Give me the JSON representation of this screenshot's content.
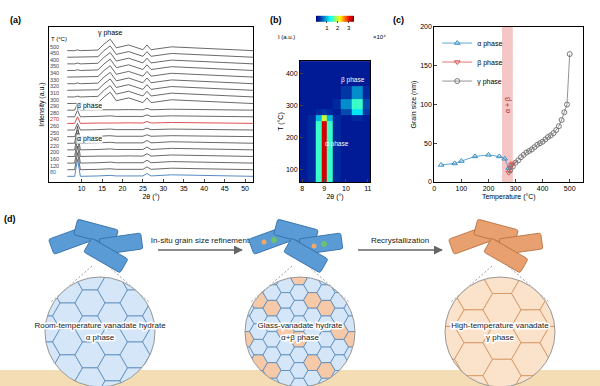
{
  "chart_data": [
    {
      "panel_label": "(a)",
      "type": "line",
      "x": [
        6.5,
        8.3,
        9,
        9.7,
        14,
        15.5,
        17,
        18.5,
        21.5,
        25,
        26,
        27,
        32,
        52
      ],
      "series": [
        {
          "name": "80",
          "color": "#2a6db5",
          "values": [
            0,
            0,
            0.9,
            0,
            0.02,
            0.03,
            0.05,
            0.02,
            0.03,
            0.02,
            0.15,
            0.02,
            0.08,
            0
          ]
        },
        {
          "name": "120",
          "color": "#444444",
          "values": [
            0.35,
            0.35,
            1.25,
            0.35,
            0.37,
            0.38,
            0.4,
            0.37,
            0.38,
            0.37,
            0.5,
            0.37,
            0.43,
            0.35
          ]
        },
        {
          "name": "160",
          "color": "#444444",
          "values": [
            0.7,
            0.7,
            1.6,
            0.7,
            0.72,
            0.73,
            0.75,
            0.72,
            0.73,
            0.72,
            0.85,
            0.72,
            0.78,
            0.7
          ]
        },
        {
          "name": "200",
          "color": "#444444",
          "values": [
            1.05,
            1.05,
            1.95,
            1.05,
            1.07,
            1.08,
            1.1,
            1.07,
            1.08,
            1.07,
            1.2,
            1.07,
            1.13,
            1.05
          ]
        },
        {
          "name": "220",
          "color": "#444444",
          "values": [
            1.4,
            1.4,
            2.3,
            1.4,
            1.42,
            1.43,
            1.45,
            1.42,
            1.43,
            1.42,
            1.55,
            1.42,
            1.48,
            1.4
          ]
        },
        {
          "name": "240",
          "color": "#444444",
          "values": [
            1.75,
            1.75,
            2.65,
            1.75,
            1.77,
            1.78,
            1.8,
            1.77,
            1.78,
            1.77,
            1.9,
            1.77,
            1.83,
            1.75
          ]
        },
        {
          "name": "250",
          "color": "#444444",
          "values": [
            2.1,
            2.1,
            2.45,
            2.1,
            2.12,
            2.13,
            2.15,
            2.12,
            2.13,
            2.12,
            2.2,
            2.12,
            2.15,
            2.1
          ]
        },
        {
          "name": "260",
          "color": "#444444",
          "values": [
            2.45,
            2.45,
            2.8,
            2.45,
            2.47,
            2.48,
            2.5,
            2.47,
            2.48,
            2.47,
            2.55,
            2.47,
            2.5,
            2.45
          ]
        },
        {
          "name": "270",
          "color": "#d62728",
          "values": [
            2.8,
            2.8,
            3.15,
            2.8,
            2.82,
            2.83,
            2.85,
            2.82,
            2.83,
            2.82,
            2.9,
            2.82,
            2.85,
            2.8
          ]
        },
        {
          "name": "280",
          "color": "#444444",
          "values": [
            3.15,
            3.15,
            3.5,
            3.15,
            3.17,
            3.18,
            3.2,
            3.17,
            3.18,
            3.17,
            3.25,
            3.17,
            3.2,
            3.15
          ]
        },
        {
          "name": "290",
          "color": "#444444",
          "values": [
            3.5,
            3.5,
            3.85,
            3.5,
            3.52,
            3.53,
            3.55,
            3.52,
            3.53,
            3.52,
            3.6,
            3.52,
            3.55,
            3.5
          ]
        },
        {
          "name": "300",
          "color": "#444444",
          "values": [
            3.85,
            3.85,
            3.89,
            3.85,
            3.88,
            4.2,
            4.45,
            4,
            4.15,
            3.9,
            4.15,
            3.9,
            4.05,
            3.85
          ]
        },
        {
          "name": "310",
          "color": "#444444",
          "values": [
            4.2,
            4.2,
            4.24,
            4.2,
            4.23,
            4.55,
            4.8,
            4.35,
            4.5,
            4.25,
            4.5,
            4.25,
            4.4,
            4.2
          ]
        },
        {
          "name": "320",
          "color": "#444444",
          "values": [
            4.55,
            4.55,
            4.59,
            4.55,
            4.58,
            4.9,
            5.15,
            4.7,
            4.85,
            4.6,
            4.85,
            4.6,
            4.75,
            4.55
          ]
        },
        {
          "name": "330",
          "color": "#444444",
          "values": [
            4.9,
            4.9,
            4.94,
            4.9,
            4.93,
            5.25,
            5.5,
            5.05,
            5.2,
            4.95,
            5.2,
            4.95,
            5.1,
            4.9
          ]
        },
        {
          "name": "340",
          "color": "#444444",
          "values": [
            5.25,
            5.25,
            5.29,
            5.25,
            5.28,
            5.6,
            5.85,
            5.4,
            5.55,
            5.3,
            5.55,
            5.3,
            5.45,
            5.25
          ]
        },
        {
          "name": "350",
          "color": "#444444",
          "values": [
            5.6,
            5.6,
            5.64,
            5.6,
            5.63,
            5.95,
            6.2,
            5.75,
            5.9,
            5.65,
            5.9,
            5.65,
            5.8,
            5.6
          ]
        },
        {
          "name": "400",
          "color": "#444444",
          "values": [
            5.95,
            5.95,
            5.99,
            5.95,
            5.98,
            6.3,
            6.55,
            6.1,
            6.25,
            6,
            6.25,
            6,
            6.15,
            5.95
          ]
        },
        {
          "name": "450",
          "color": "#444444",
          "values": [
            6.3,
            6.3,
            6.34,
            6.3,
            6.33,
            6.65,
            6.9,
            6.45,
            6.6,
            6.35,
            6.6,
            6.35,
            6.5,
            6.3
          ]
        },
        {
          "name": "500",
          "color": "#444444",
          "values": [
            6.65,
            6.65,
            6.69,
            6.65,
            6.68,
            7,
            7.25,
            6.8,
            6.95,
            6.7,
            6.95,
            6.7,
            6.85,
            6.65
          ]
        }
      ],
      "series_heading": "T (°C)",
      "xlim": [
        2,
        52
      ],
      "ylim": [
        -0.3,
        7.9
      ],
      "xticks": [
        10,
        15,
        20,
        25,
        30,
        35,
        40,
        45,
        50
      ],
      "x_label": "2θ (°)",
      "y_label": "Intensity (a.u.)",
      "tick_labels": "x",
      "annotations": [
        {
          "text": "γ phase",
          "x": 17,
          "y": 7.6
        },
        {
          "text": "β phase",
          "x": 12,
          "y": 3.7
        },
        {
          "text": "α phase",
          "x": 12,
          "y": 2.0
        }
      ]
    },
    {
      "panel_label": "(b)",
      "type": "heatmap",
      "x": [
        8,
        8.5,
        8.75,
        9,
        9.25,
        9.5,
        10,
        10.5,
        11
      ],
      "y": [
        80,
        120,
        160,
        200,
        240,
        260,
        280,
        300,
        340,
        380,
        420
      ],
      "z": [
        [
          0.2,
          0.3,
          1.5,
          3.2,
          1.5,
          0.3,
          0.2,
          0.2,
          0.2
        ],
        [
          0.2,
          0.3,
          1.5,
          3.2,
          1.5,
          0.3,
          0.2,
          0.2,
          0.2
        ],
        [
          0.2,
          0.3,
          1.5,
          3.2,
          1.5,
          0.3,
          0.2,
          0.2,
          0.2
        ],
        [
          0.2,
          0.3,
          1.5,
          3.2,
          1.5,
          0.3,
          0.2,
          0.2,
          0.2
        ],
        [
          0.2,
          0.3,
          1.5,
          3.2,
          1.5,
          0.3,
          0.2,
          0.2,
          0.2
        ],
        [
          0.2,
          0.3,
          1,
          2,
          1,
          0.3,
          0.2,
          0.3,
          0.2
        ],
        [
          0.2,
          0.2,
          0.3,
          0.4,
          0.3,
          0.2,
          0.5,
          1.2,
          0.4
        ],
        [
          0.2,
          0.2,
          0.2,
          0.2,
          0.2,
          0.3,
          0.8,
          1.5,
          0.5
        ],
        [
          0.2,
          0.2,
          0.2,
          0.2,
          0.2,
          0.2,
          0.4,
          0.8,
          0.3
        ],
        [
          0.2,
          0.2,
          0.2,
          0.2,
          0.2,
          0.2,
          0.2,
          0.2,
          0.2
        ],
        [
          0.2,
          0.2,
          0.2,
          0.2,
          0.2,
          0.2,
          0.2,
          0.2,
          0.2
        ]
      ],
      "xlim": [
        7.9,
        11.1
      ],
      "ylim": [
        60,
        440
      ],
      "xticks": [
        8,
        9,
        10,
        11
      ],
      "yticks": [
        100,
        200,
        300,
        400
      ],
      "x_label": "2θ (°)",
      "y_label": "T (°C)",
      "colorbar": {
        "title": "I (a.u.)",
        "range": [
          0,
          3.5
        ],
        "ticks": [
          1,
          2,
          3
        ],
        "exponent_label": "×10⁴"
      },
      "annotations": [
        {
          "text": "α phase",
          "x": 9.6,
          "y": 180
        },
        {
          "text": "β phase",
          "x": 10.3,
          "y": 380
        }
      ]
    },
    {
      "panel_label": "(c)",
      "type": "scatter",
      "series": [
        {
          "name": "α phase",
          "color": "#3a8fc7",
          "marker": "triangle-up-open",
          "line_style": "solid",
          "x": [
            25,
            75,
            100,
            150,
            200,
            240,
            260,
            275
          ],
          "values": [
            22,
            24,
            27,
            33,
            35,
            33,
            30,
            18
          ]
        },
        {
          "name": "β phase",
          "color": "#d9534f",
          "marker": "triangle-down-open",
          "line_style": "solid",
          "x": [
            275,
            280,
            285,
            290
          ],
          "values": [
            12,
            18,
            22,
            24
          ]
        },
        {
          "name": "γ phase",
          "color": "#777777",
          "marker": "circle-open",
          "line_style": "solid",
          "x": [
            280,
            290,
            300,
            310,
            320,
            330,
            340,
            350,
            360,
            370,
            380,
            390,
            400,
            410,
            420,
            430,
            440,
            450,
            460,
            470,
            480,
            490,
            500
          ],
          "values": [
            15,
            20,
            25,
            28,
            32,
            35,
            38,
            40,
            42,
            45,
            48,
            50,
            52,
            55,
            58,
            60,
            63,
            67,
            72,
            80,
            90,
            100,
            165
          ]
        }
      ],
      "xlim": [
        0,
        550
      ],
      "ylim": [
        0,
        200
      ],
      "xticks": [
        0,
        100,
        200,
        300,
        400,
        500
      ],
      "yticks": [
        0,
        50,
        100,
        150,
        200
      ],
      "x_label": "Temperature (°C)",
      "y_label": "Grain size (nm)",
      "legend": "upper left",
      "regions": [
        {
          "text": "α + β",
          "x0": 250,
          "x1": 290,
          "color": "#e88080"
        }
      ]
    }
  ],
  "diagram": {
    "panel_label": "(d)",
    "stages": [
      {
        "label": "Room-temperature vanadate hydrate",
        "phase": "α phase"
      },
      {
        "label": "Glass-vanadate hydrate",
        "phase": "α+β phase"
      },
      {
        "label": "High-temperature vanadate",
        "phase": "γ phase"
      }
    ],
    "transitions": [
      "In-situ grain size refinement",
      "Recrystallization"
    ]
  }
}
